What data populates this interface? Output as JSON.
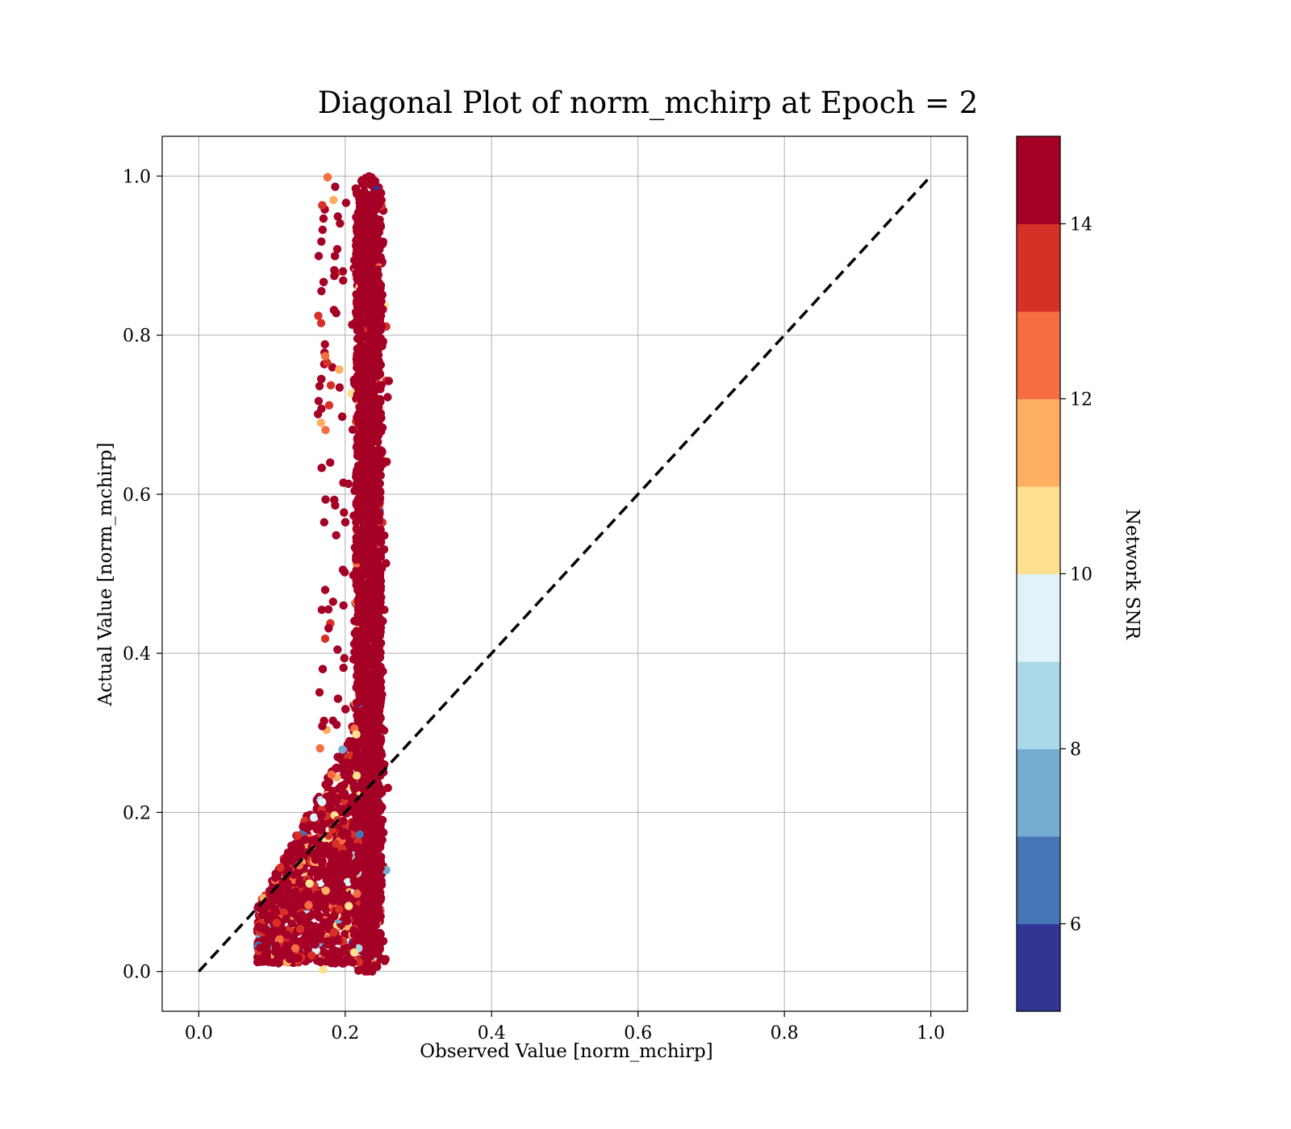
{
  "chart_data": {
    "type": "scatter",
    "title": "Diagonal Plot of norm_mchirp at Epoch = 2",
    "xlabel": "Observed Value [norm_mchirp]",
    "ylabel": "Actual Value [norm_mchirp]",
    "xlim": [
      -0.05,
      1.05
    ],
    "ylim": [
      -0.05,
      1.05
    ],
    "xticks": [
      "0.0",
      "0.2",
      "0.4",
      "0.6",
      "0.8",
      "1.0"
    ],
    "yticks": [
      "0.0",
      "0.2",
      "0.4",
      "0.6",
      "0.8",
      "1.0"
    ],
    "grid": true,
    "reference_line": {
      "x": [
        0,
        1
      ],
      "y": [
        0,
        1
      ],
      "style": "dashed",
      "color": "#000000"
    },
    "colorbar": {
      "label": "Network SNR",
      "range": [
        5,
        15
      ],
      "ticks": [
        "6",
        "8",
        "10",
        "12",
        "14"
      ],
      "colors": [
        "#313695",
        "#4575b4",
        "#74add1",
        "#abd9e9",
        "#e0f3f8",
        "#fee090",
        "#fdae61",
        "#f46d43",
        "#d73027",
        "#a50026"
      ]
    },
    "point_clusters": [
      {
        "description": "main vertical band",
        "x_center": 0.232,
        "x_spread": 0.018,
        "y_range": [
          0.0,
          1.0
        ],
        "dominant_snr": 15
      },
      {
        "description": "low-value wedge",
        "x_range": [
          0.08,
          0.22
        ],
        "y_range": [
          0.01,
          0.3
        ],
        "dominant_snr": 15
      }
    ]
  }
}
